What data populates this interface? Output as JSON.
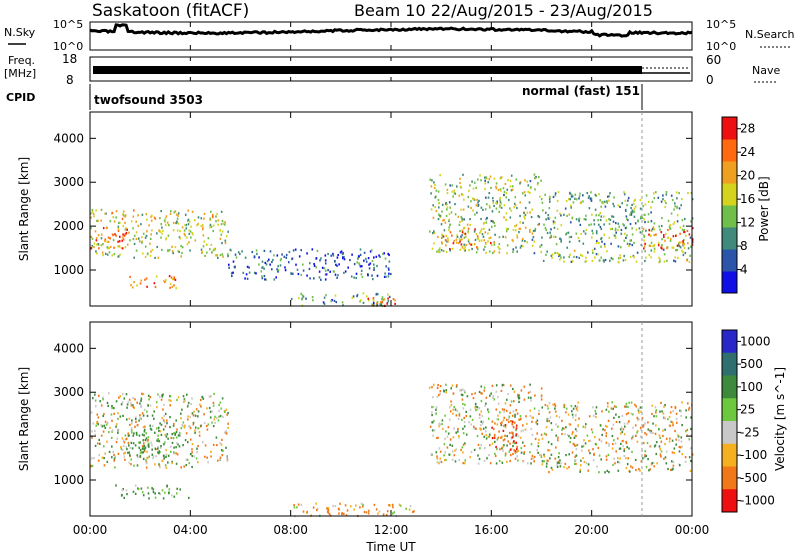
{
  "header": {
    "station": "Saskatoon (fitACF)",
    "beam_date": "Beam 10 22/Aug/2015 - 23/Aug/2015"
  },
  "top_panels": {
    "nsky_label": "N.Sky",
    "nsearch_label": "N.Search",
    "noise_ticks_top": "10^5",
    "noise_ticks_bottom": "10^0",
    "freq_label": "Freq.",
    "freq_unit": "[MHz]",
    "freq_tick_top": "18",
    "freq_tick_bottom": "8",
    "nave_label": "Nave",
    "nave_tick_top": "60",
    "nave_tick_bottom": "0",
    "cpid_label": "CPID",
    "cpid_left": "twofsound 3503",
    "cpid_right": "normal (fast) 151"
  },
  "chart_data": [
    {
      "type": "heatmap",
      "name": "power",
      "ylabel": "Slant Range [km]",
      "yticks": [
        "1000",
        "2000",
        "3000",
        "4000"
      ],
      "ylim": [
        180,
        4600
      ],
      "colorbar_label": "Power [dB]",
      "colorbar_ticks": [
        "4",
        "8",
        "12",
        "16",
        "20",
        "24",
        "28"
      ],
      "colorbar_range": [
        0,
        30
      ],
      "colors": [
        "#1010e6",
        "#2a55a8",
        "#3f8a7a",
        "#6fbf4a",
        "#d4d41e",
        "#f0a020",
        "#ff6a10",
        "#ee1010"
      ],
      "regions": [
        {
          "t": [
            0.0,
            5.5
          ],
          "r": [
            1300,
            2400
          ],
          "power": 16
        },
        {
          "t": [
            0.0,
            1.5
          ],
          "r": [
            1500,
            2000
          ],
          "power": 26
        },
        {
          "t": [
            1.5,
            3.5
          ],
          "r": [
            600,
            900
          ],
          "power": 22
        },
        {
          "t": [
            5.5,
            12.0
          ],
          "r": [
            800,
            1500
          ],
          "power": 6
        },
        {
          "t": [
            8.0,
            12.0
          ],
          "r": [
            200,
            500
          ],
          "power": 10
        },
        {
          "t": [
            11.0,
            12.5
          ],
          "r": [
            200,
            400
          ],
          "power": 26
        },
        {
          "t": [
            13.5,
            18.0
          ],
          "r": [
            1400,
            3200
          ],
          "power": 14
        },
        {
          "t": [
            14.0,
            16.0
          ],
          "r": [
            1500,
            2000
          ],
          "power": 22
        },
        {
          "t": [
            18.0,
            24.0
          ],
          "r": [
            1200,
            2800
          ],
          "power": 12
        },
        {
          "t": [
            22.0,
            24.0
          ],
          "r": [
            1500,
            2000
          ],
          "power": 24
        }
      ]
    },
    {
      "type": "heatmap",
      "name": "velocity",
      "xlabel": "Time UT",
      "xticks": [
        "00:00",
        "04:00",
        "08:00",
        "12:00",
        "16:00",
        "20:00",
        "00:00"
      ],
      "xlim": [
        0,
        24
      ],
      "ylabel": "Slant Range [km]",
      "yticks": [
        "1000",
        "2000",
        "3000",
        "4000"
      ],
      "ylim": [
        180,
        4600
      ],
      "colorbar_label": "Velocity [m s^-1]",
      "colorbar_ticks": [
        "1000",
        "500",
        "100",
        "25",
        "-25",
        "-100",
        "-500",
        "-1000"
      ],
      "colors": [
        "#2828c8",
        "#2f6f6f",
        "#3d8a3d",
        "#6cc83c",
        "#c8c8c8",
        "#f5b020",
        "#f07818",
        "#ee1010"
      ],
      "regions": [
        {
          "t": [
            0.0,
            5.5
          ],
          "r": [
            1300,
            3000
          ],
          "velocity": 0
        },
        {
          "t": [
            1.5,
            3.5
          ],
          "r": [
            1500,
            2200
          ],
          "velocity": 150
        },
        {
          "t": [
            1.0,
            4.0
          ],
          "r": [
            600,
            900
          ],
          "velocity": 120
        },
        {
          "t": [
            8.0,
            13.0
          ],
          "r": [
            200,
            500
          ],
          "velocity": -80
        },
        {
          "t": [
            13.5,
            18.0
          ],
          "r": [
            1400,
            3200
          ],
          "velocity": 0
        },
        {
          "t": [
            16.0,
            17.0
          ],
          "r": [
            1500,
            2400
          ],
          "velocity": -300
        },
        {
          "t": [
            18.0,
            24.0
          ],
          "r": [
            1200,
            2800
          ],
          "velocity": 0
        }
      ]
    }
  ]
}
